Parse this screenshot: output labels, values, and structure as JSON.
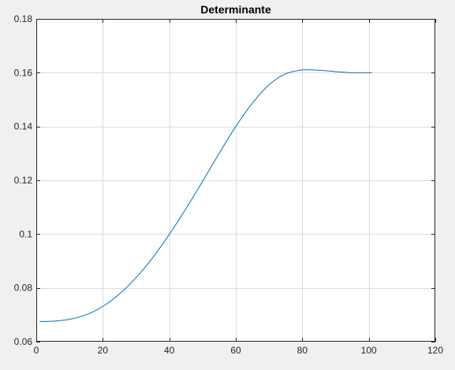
{
  "chart_data": {
    "type": "line",
    "title": "Determinante",
    "xlabel": "",
    "ylabel": "",
    "xlim": [
      0,
      120
    ],
    "ylim": [
      0.06,
      0.18
    ],
    "xticks": [
      0,
      20,
      40,
      60,
      80,
      100,
      120
    ],
    "xtick_labels": [
      "0",
      "20",
      "40",
      "60",
      "80",
      "100",
      "120"
    ],
    "yticks": [
      0.06,
      0.08,
      0.1,
      0.12,
      0.14,
      0.16,
      0.18
    ],
    "ytick_labels": [
      "0.06",
      "0.08",
      "0.1",
      "0.12",
      "0.14",
      "0.16",
      "0.18"
    ],
    "grid": true,
    "colors": {
      "figure_background": "#f0f0f0",
      "axes_background": "#ffffff",
      "grid": "#dcdcdc",
      "axes": "#262626",
      "line": "#0072bd"
    },
    "series": [
      {
        "x": [
          1,
          5,
          10,
          15,
          20,
          25,
          30,
          35,
          40,
          45,
          50,
          55,
          60,
          65,
          70,
          75,
          80,
          85,
          90,
          95,
          101
        ],
        "y": [
          0.0675,
          0.0676,
          0.0683,
          0.07,
          0.0731,
          0.0777,
          0.0838,
          0.0912,
          0.0999,
          0.1094,
          0.1196,
          0.13,
          0.14,
          0.1487,
          0.1555,
          0.1596,
          0.161,
          0.1609,
          0.1604,
          0.16,
          0.16
        ]
      }
    ]
  }
}
